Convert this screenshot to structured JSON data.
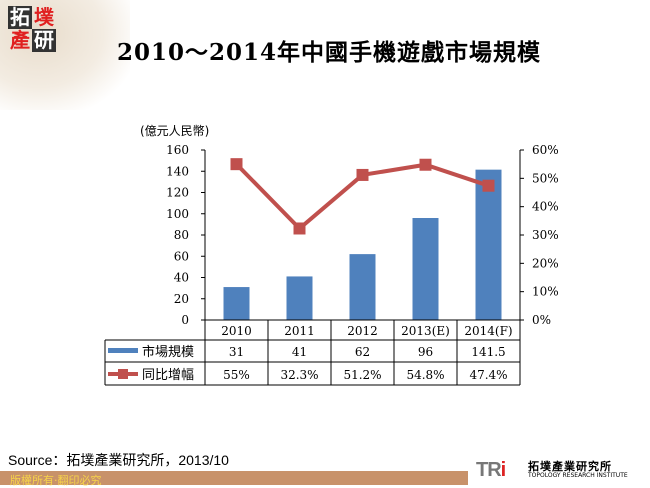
{
  "logo": {
    "chars": [
      "拓",
      "墣",
      "產",
      "研"
    ]
  },
  "title": "2010～2014年中國手機遊戲市場規模",
  "source": "Source：拓墣產業研究所，2013/10",
  "copyright": "版權所有‧翻印必究",
  "brand": {
    "mark": "TRi",
    "name_cn": "拓墣產業研究所",
    "name_en": "TOPOLOGY RESEARCH INSTITUTE"
  },
  "chart_data": {
    "type": "bar+line",
    "title": "2010～2014年中國手機遊戲市場規模",
    "ylabel": "(億元人民幣)",
    "categories": [
      "2010",
      "2011",
      "2012",
      "2013(E)",
      "2014(F)"
    ],
    "ylim": [
      0,
      160
    ],
    "y2lim": [
      0,
      60
    ],
    "yticks": [
      "0",
      "20",
      "40",
      "60",
      "80",
      "100",
      "120",
      "140",
      "160"
    ],
    "y2ticks": [
      "0%",
      "10%",
      "20%",
      "30%",
      "40%",
      "50%",
      "60%"
    ],
    "series": [
      {
        "name": "市場規模",
        "type": "bar",
        "color": "#4f81bd",
        "values": [
          31,
          41,
          62,
          96,
          141.5
        ],
        "labels": [
          "31",
          "41",
          "62",
          "96",
          "141.5"
        ]
      },
      {
        "name": "同比增幅",
        "type": "line",
        "axis": "right",
        "color": "#c0504d",
        "values": [
          55,
          32.3,
          51.2,
          54.8,
          47.4
        ],
        "labels": [
          "55%",
          "32.3%",
          "51.2%",
          "54.8%",
          "47.4%"
        ]
      }
    ],
    "legend": "data-table"
  }
}
